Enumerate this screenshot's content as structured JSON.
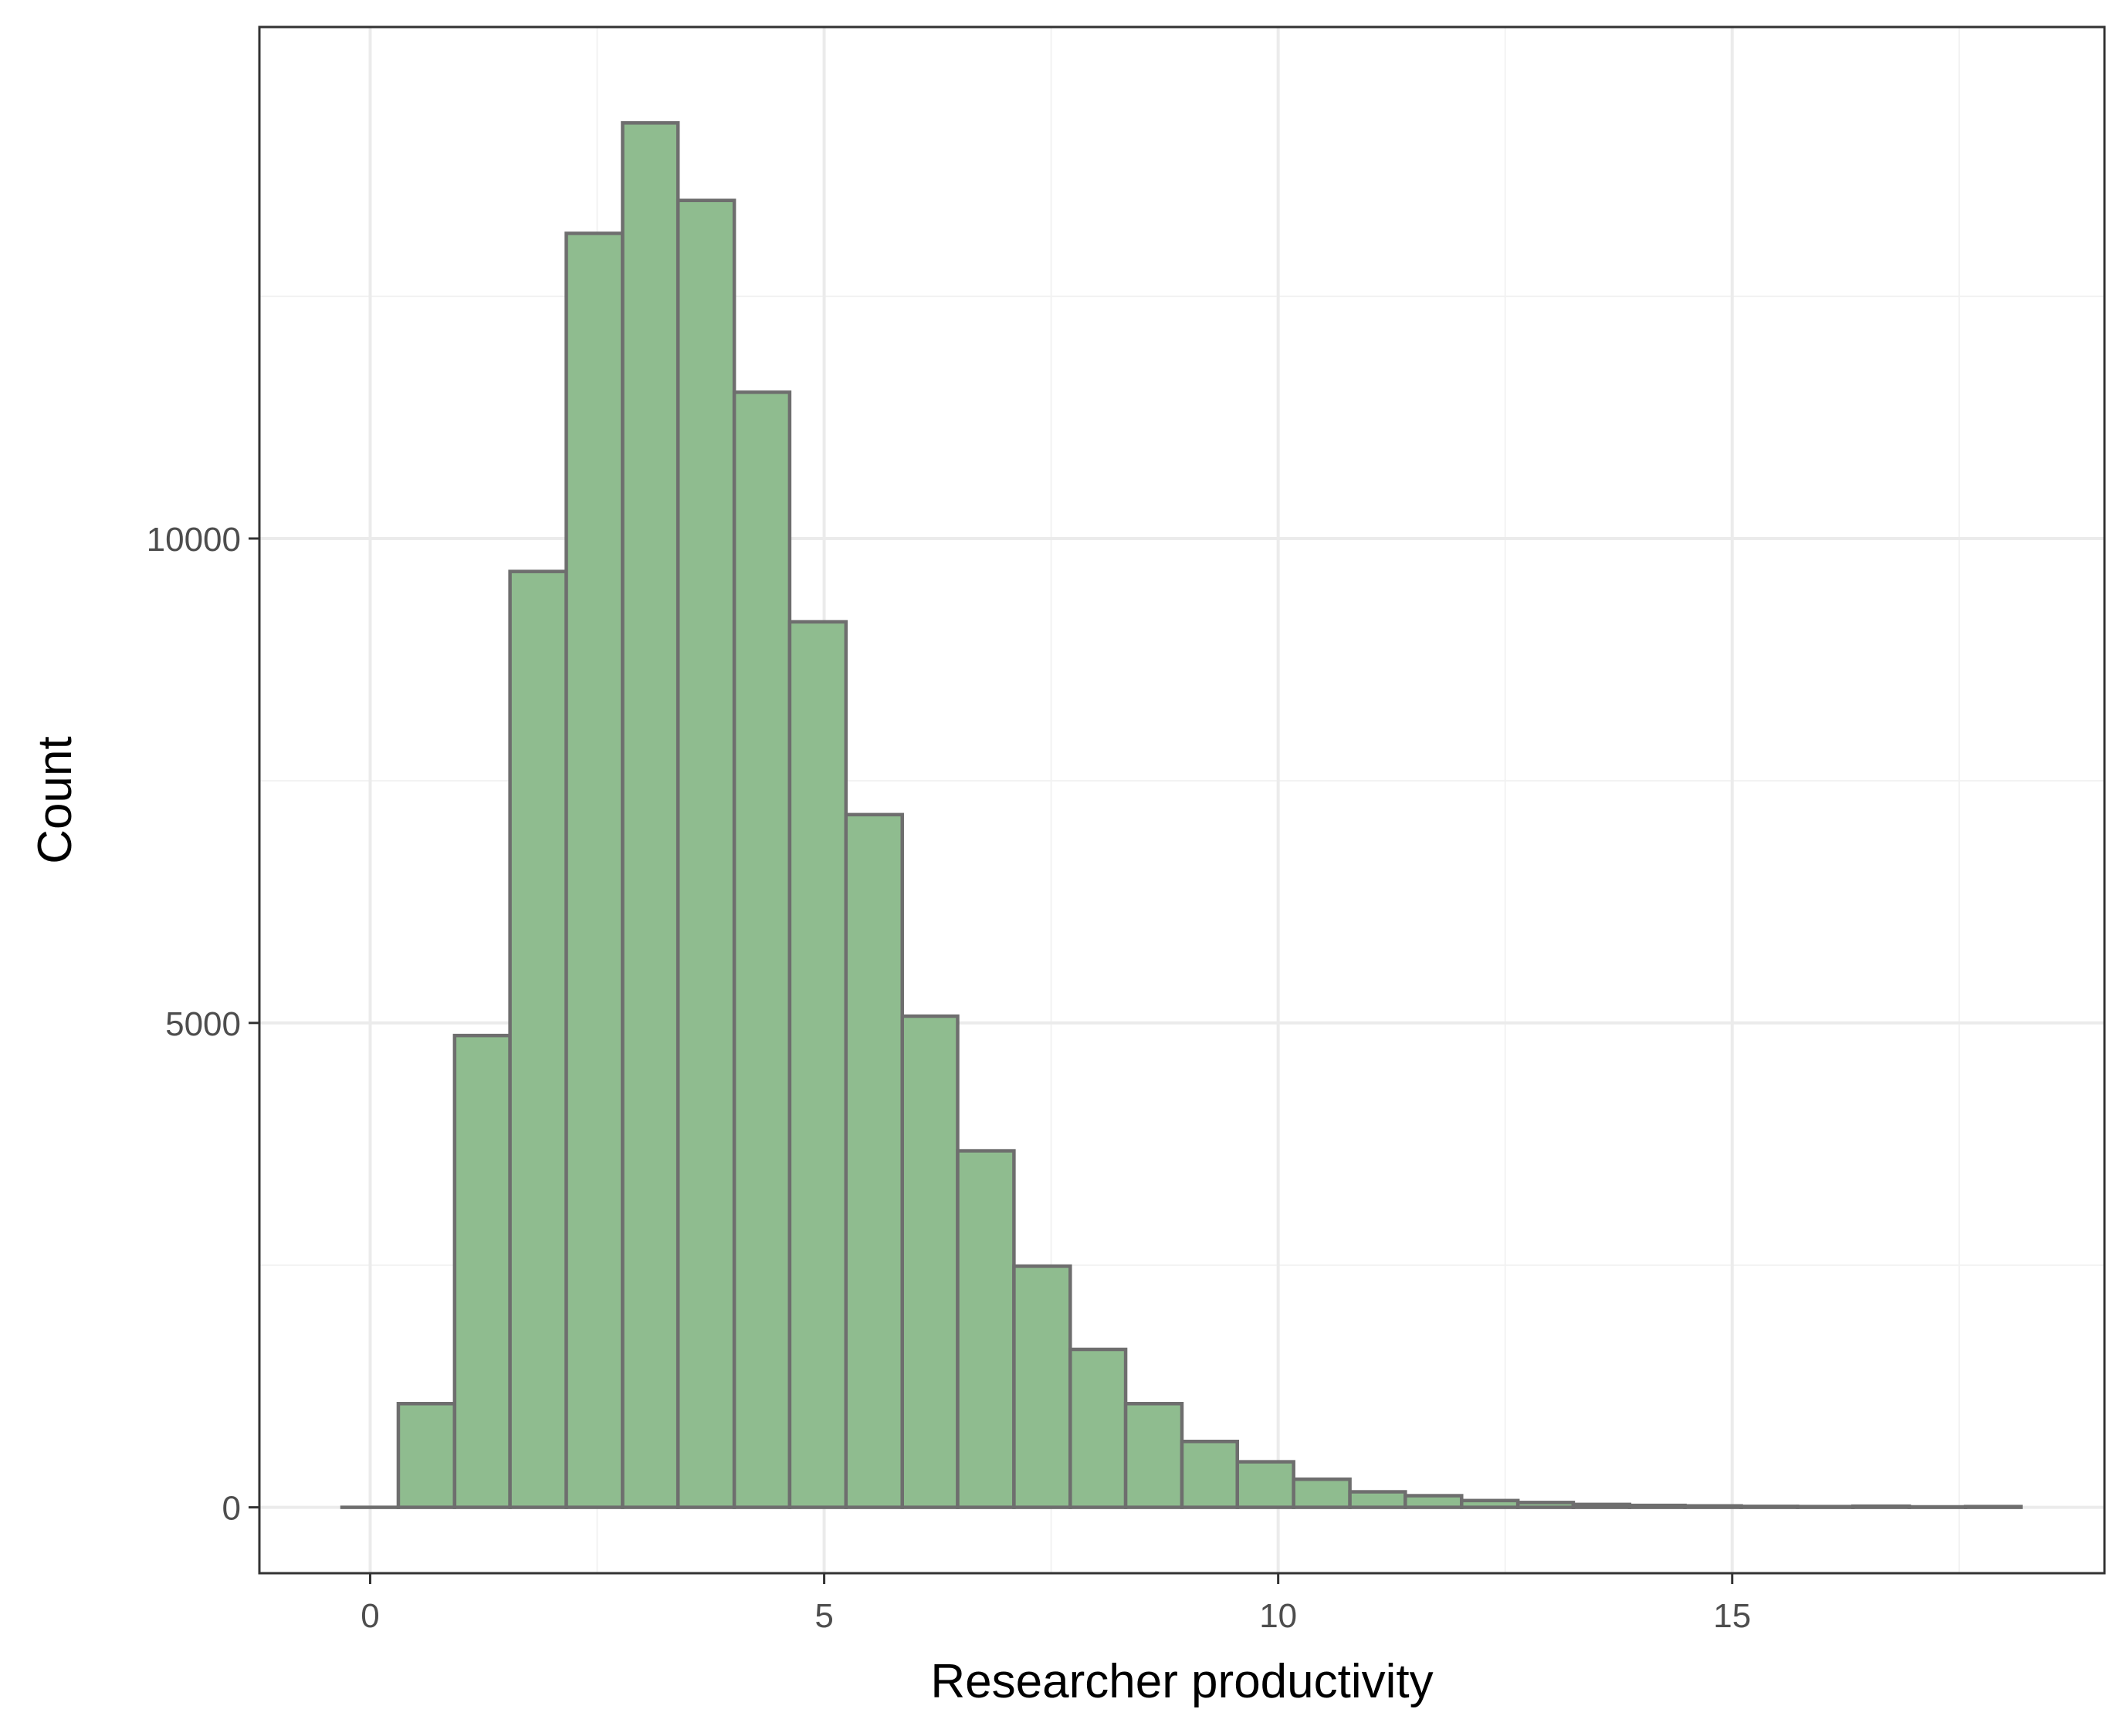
{
  "chart_data": {
    "type": "bar",
    "title": "",
    "xlabel": "Researcher productivity",
    "ylabel": "Count",
    "bin_width": 0.6167,
    "bins": [
      {
        "x_start": -0.31,
        "x_end": 0.31,
        "count": 0
      },
      {
        "x_start": 0.31,
        "x_end": 0.93,
        "count": 1070
      },
      {
        "x_start": 0.93,
        "x_end": 1.54,
        "count": 4870
      },
      {
        "x_start": 1.54,
        "x_end": 2.16,
        "count": 9660
      },
      {
        "x_start": 2.16,
        "x_end": 2.78,
        "count": 13150
      },
      {
        "x_start": 2.78,
        "x_end": 3.39,
        "count": 14290
      },
      {
        "x_start": 3.39,
        "x_end": 4.01,
        "count": 13490
      },
      {
        "x_start": 4.01,
        "x_end": 4.62,
        "count": 11510
      },
      {
        "x_start": 4.62,
        "x_end": 5.24,
        "count": 9140
      },
      {
        "x_start": 5.24,
        "x_end": 5.86,
        "count": 7150
      },
      {
        "x_start": 5.86,
        "x_end": 6.47,
        "count": 5070
      },
      {
        "x_start": 6.47,
        "x_end": 7.09,
        "count": 3680
      },
      {
        "x_start": 7.09,
        "x_end": 7.71,
        "count": 2490
      },
      {
        "x_start": 7.71,
        "x_end": 8.32,
        "count": 1630
      },
      {
        "x_start": 8.32,
        "x_end": 8.94,
        "count": 1070
      },
      {
        "x_start": 8.94,
        "x_end": 9.55,
        "count": 680
      },
      {
        "x_start": 9.55,
        "x_end": 10.17,
        "count": 470
      },
      {
        "x_start": 10.17,
        "x_end": 10.79,
        "count": 290
      },
      {
        "x_start": 10.79,
        "x_end": 11.4,
        "count": 160
      },
      {
        "x_start": 11.4,
        "x_end": 12.02,
        "count": 120
      },
      {
        "x_start": 12.02,
        "x_end": 12.64,
        "count": 70
      },
      {
        "x_start": 12.64,
        "x_end": 13.25,
        "count": 50
      },
      {
        "x_start": 13.25,
        "x_end": 13.87,
        "count": 30
      },
      {
        "x_start": 13.87,
        "x_end": 14.48,
        "count": 20
      },
      {
        "x_start": 14.48,
        "x_end": 15.1,
        "count": 15
      },
      {
        "x_start": 15.1,
        "x_end": 15.72,
        "count": 10
      },
      {
        "x_start": 15.72,
        "x_end": 16.33,
        "count": 8
      },
      {
        "x_start": 16.33,
        "x_end": 16.95,
        "count": 12
      },
      {
        "x_start": 16.95,
        "x_end": 17.57,
        "count": 5
      },
      {
        "x_start": 17.57,
        "x_end": 18.18,
        "count": 8
      }
    ],
    "xlim": [
      -1.22,
      19.1
    ],
    "ylim": [
      -680,
      15280
    ],
    "x_ticks": [
      0,
      5,
      10,
      15
    ],
    "x_tick_labels": [
      "0",
      "5",
      "10",
      "15"
    ],
    "x_minor_ticks": [
      2.5,
      7.5,
      12.5,
      17.5
    ],
    "y_ticks": [
      0,
      5000,
      10000
    ],
    "y_tick_labels": [
      "0",
      "5000",
      "10000"
    ],
    "y_minor_ticks": [
      2500,
      7500,
      12500
    ],
    "grid": true,
    "legend": "none",
    "colors": {
      "bar_fill": "#8fbc8f",
      "bar_stroke": "#6e6e6e",
      "grid_major": "#ebebeb",
      "grid_minor": "#f2f2f2",
      "panel_border": "#333333",
      "tick_text": "#4d4d4d",
      "title_text": "#000000"
    }
  }
}
